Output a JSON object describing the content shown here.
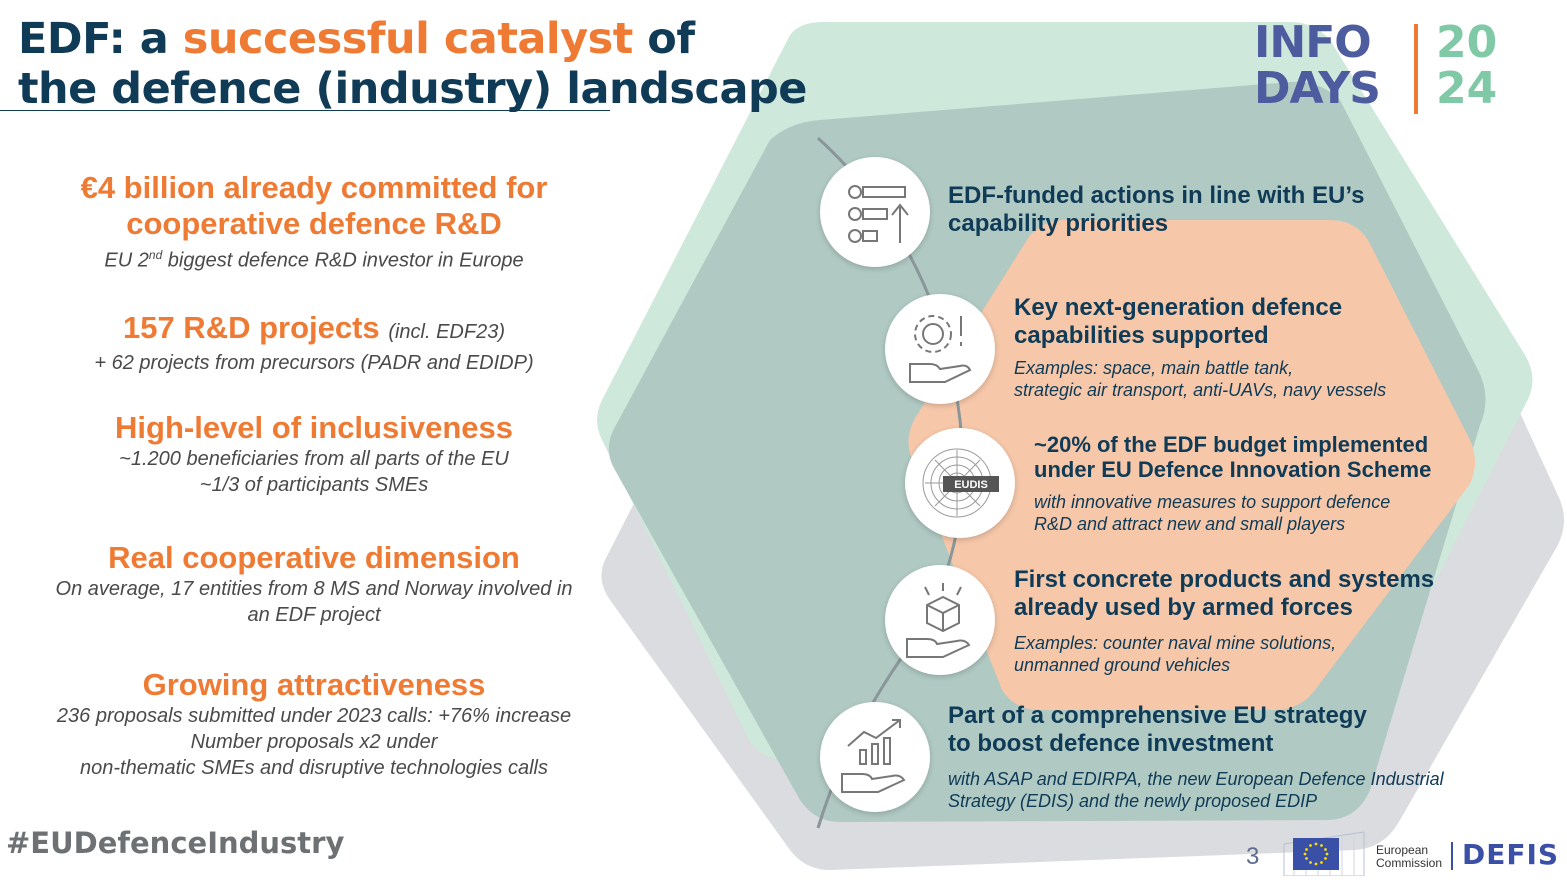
{
  "title": {
    "part1": "EDF: a ",
    "highlight": "successful catalyst",
    "part2": " of",
    "line2": "the defence (industry) landscape"
  },
  "logo": {
    "line1": "INFO",
    "line2": "DAYS",
    "year1": "20",
    "year2": "24"
  },
  "stats": [
    {
      "headline": "€4 billion already committed for",
      "headline2": "cooperative defence R&D",
      "sub_pre": "EU 2",
      "sub_sup": "nd",
      "sub_post": " biggest defence R&D investor in Europe"
    },
    {
      "headline": "157 R&D projects",
      "note": "(incl. EDF23)",
      "lines": [
        "+ 62 projects from precursors (PADR and EDIDP)"
      ]
    },
    {
      "headline": "High-level of inclusiveness",
      "lines": [
        "~1.200 beneficiaries from all parts of the EU",
        "~1/3 of participants SMEs"
      ]
    },
    {
      "headline": "Real cooperative dimension",
      "lines": [
        "On average, 17 entities from 8 MS and Norway involved in",
        "an EDF project"
      ]
    },
    {
      "headline": "Growing attractiveness",
      "lines": [
        "236 proposals submitted under 2023 calls: +76% increase",
        "Number proposals x2 under",
        "non-thematic SMEs and disruptive technologies calls"
      ]
    }
  ],
  "items": [
    {
      "icon": "numbered-list-icon",
      "title1": "EDF-funded actions in line with EU’s",
      "title2": "capability priorities",
      "desc1": "",
      "desc2": ""
    },
    {
      "icon": "gear-hand-icon",
      "title1": "Key next-generation defence",
      "title2": "capabilities supported",
      "desc1": "Examples: space, main battle tank,",
      "desc2": "strategic air transport, anti-UAVs, navy vessels"
    },
    {
      "icon": "eudis-logo-icon",
      "badge": "EUDIS",
      "title1": "~20% of the EDF budget implemented",
      "title2": "under EU Defence Innovation Scheme",
      "desc1": "with innovative measures to support defence",
      "desc2": "R&D and attract new and small players"
    },
    {
      "icon": "box-hand-icon",
      "title1": "First concrete products and systems",
      "title2": "already used by armed forces",
      "desc1": "Examples: counter naval mine solutions,",
      "desc2": "unmanned ground vehicles"
    },
    {
      "icon": "growth-chart-hand-icon",
      "title1": "Part of a comprehensive EU strategy",
      "title2": "to boost defence investment",
      "desc1": "with ASAP and EDIRPA, the new European Defence Industrial",
      "desc2": "Strategy (EDIS) and the newly proposed EDIP"
    }
  ],
  "hashtag": "#EUDefenceIndustry",
  "footer": {
    "page_number": "3",
    "commission_line1": "European",
    "commission_line2": "Commission",
    "dg": "DEFIS"
  },
  "colors": {
    "navy": "#0f3b57",
    "orange": "#ee7a33",
    "mint_hexagon": "#cfe8dc",
    "teal_hexagon": "#b0c9c3",
    "grey_hexagon": "#dadcdf",
    "peach_hexagon": "#f6c7a9"
  }
}
